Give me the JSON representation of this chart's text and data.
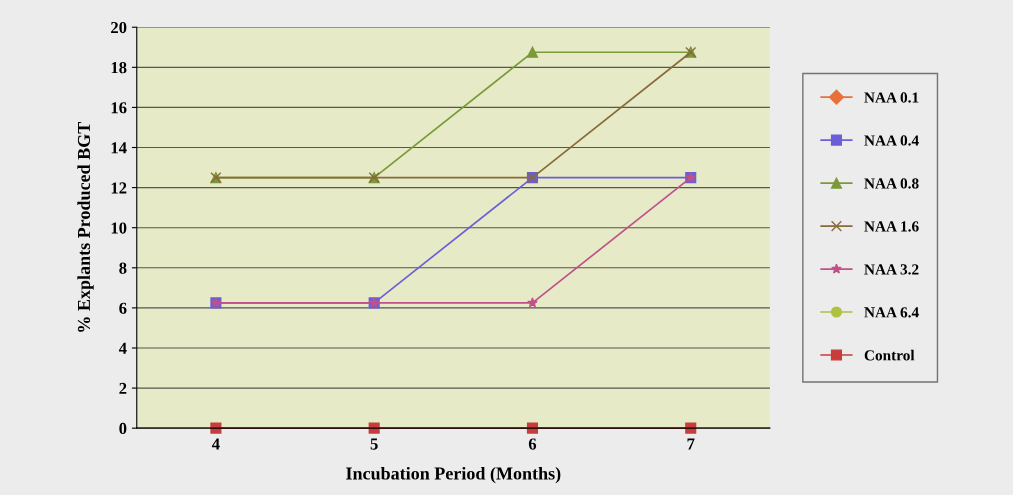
{
  "chart_data": {
    "type": "line",
    "xlabel": "Incubation Period (Months)",
    "ylabel": "% Explants Produced BGT",
    "categories": [
      "4",
      "5",
      "6",
      "7"
    ],
    "series": [
      {
        "name": "NAA 0.1",
        "color": "#e8703a",
        "marker": "diamond",
        "values": [
          null,
          null,
          null,
          null
        ]
      },
      {
        "name": "NAA 0.4",
        "color": "#6a5fd8",
        "marker": "square",
        "values": [
          6.25,
          6.25,
          12.5,
          12.5
        ]
      },
      {
        "name": "NAA 0.8",
        "color": "#7a9a3a",
        "marker": "triangle",
        "values": [
          12.5,
          12.5,
          18.75,
          18.75
        ]
      },
      {
        "name": "NAA 1.6",
        "color": "#8a6a3a",
        "marker": "cross",
        "values": [
          12.5,
          12.5,
          12.5,
          18.75
        ]
      },
      {
        "name": "NAA 3.2",
        "color": "#c0508a",
        "marker": "star",
        "values": [
          6.25,
          6.25,
          6.25,
          12.5
        ]
      },
      {
        "name": "NAA 6.4",
        "color": "#b0c040",
        "marker": "circle",
        "values": [
          null,
          null,
          null,
          null
        ]
      },
      {
        "name": "Control",
        "color": "#c83c3c",
        "marker": "square",
        "values": [
          0,
          0,
          0,
          0
        ]
      }
    ],
    "ylim": [
      0,
      20
    ],
    "yticks": [
      0,
      2,
      4,
      6,
      8,
      10,
      12,
      14,
      16,
      18,
      20
    ],
    "grid": "y",
    "legend": "right"
  }
}
